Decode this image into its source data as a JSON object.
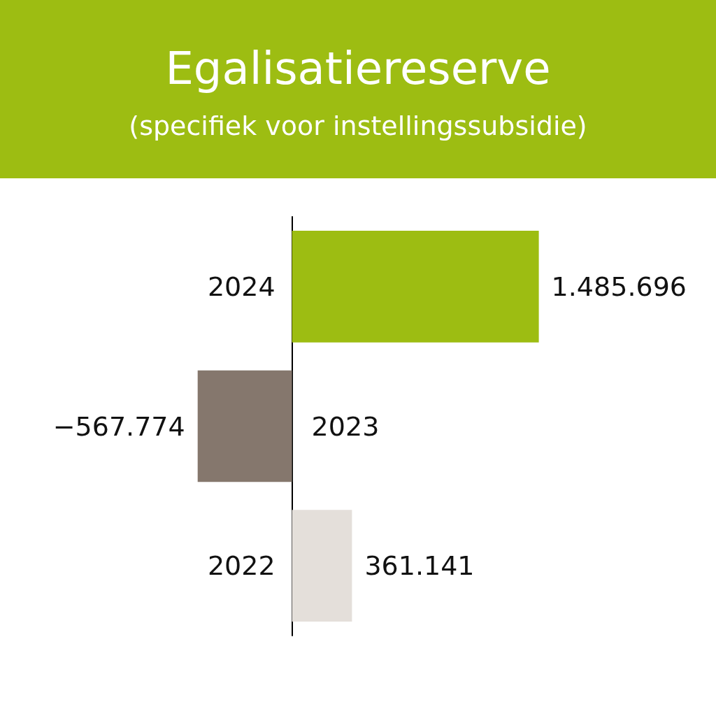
{
  "chart_data": {
    "type": "bar",
    "orientation": "horizontal",
    "title": "Egalisatiereserve",
    "subtitle": "(specifiek voor instellingssubsidie)",
    "categories": [
      "2024",
      "2023",
      "2022"
    ],
    "values": [
      1485696,
      -567774,
      361141
    ],
    "colors": [
      "#9dbd12",
      "#85776d",
      "#e4dfda"
    ],
    "value_labels": [
      "1.485.696",
      "−567.774",
      "361.141"
    ],
    "grid": false
  }
}
